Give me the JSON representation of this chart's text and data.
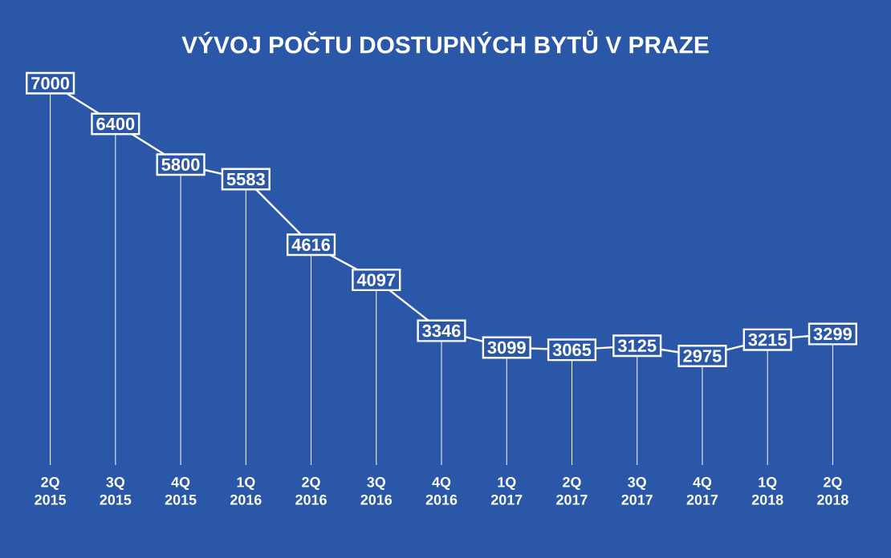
{
  "chart_data": {
    "type": "line",
    "title": "VÝVOJ POČTU DOSTUPNÝCH BYTŮ V PRAZE",
    "categories": [
      "2Q 2015",
      "3Q 2015",
      "4Q 2015",
      "1Q 2016",
      "2Q 2016",
      "3Q 2016",
      "4Q 2016",
      "1Q 2017",
      "2Q 2017",
      "3Q 2017",
      "4Q 2017",
      "1Q 2018",
      "2Q 2018"
    ],
    "values": [
      7000,
      6400,
      5800,
      5583,
      4616,
      4097,
      3346,
      3099,
      3065,
      3125,
      2975,
      3215,
      3299
    ],
    "color": "#ffffff",
    "data_labels": true,
    "line_style": "solid",
    "grid": "x",
    "marker": "square"
  }
}
